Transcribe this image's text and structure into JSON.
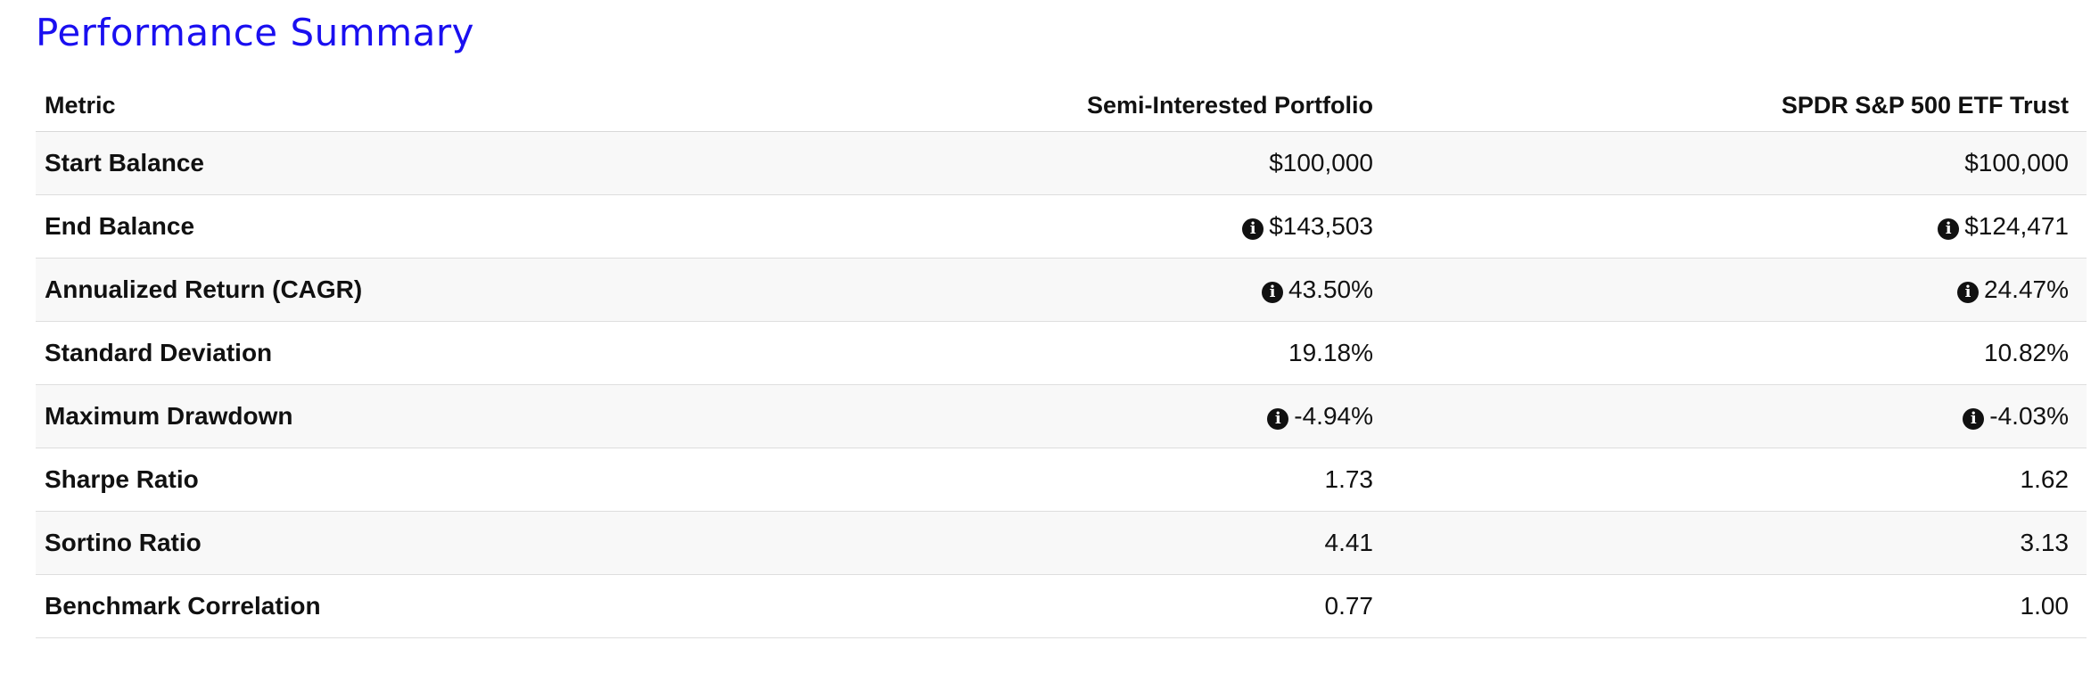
{
  "title": "Performance Summary",
  "colors": {
    "title": "#1a0ff0"
  },
  "table": {
    "headers": [
      "Metric",
      "Semi-Interested Portfolio",
      "SPDR S&P 500 ETF Trust"
    ],
    "rows": [
      {
        "metric": "Start Balance",
        "a": "$100,000",
        "a_info": false,
        "b": "$100,000",
        "b_info": false
      },
      {
        "metric": "End Balance",
        "a": "$143,503",
        "a_info": true,
        "b": "$124,471",
        "b_info": true
      },
      {
        "metric": "Annualized Return (CAGR)",
        "a": "43.50%",
        "a_info": true,
        "b": "24.47%",
        "b_info": true
      },
      {
        "metric": "Standard Deviation",
        "a": "19.18%",
        "a_info": false,
        "b": "10.82%",
        "b_info": false
      },
      {
        "metric": "Maximum Drawdown",
        "a": "-4.94%",
        "a_info": true,
        "b": "-4.03%",
        "b_info": true
      },
      {
        "metric": "Sharpe Ratio",
        "a": "1.73",
        "a_info": false,
        "b": "1.62",
        "b_info": false
      },
      {
        "metric": "Sortino Ratio",
        "a": "4.41",
        "a_info": false,
        "b": "3.13",
        "b_info": false
      },
      {
        "metric": "Benchmark Correlation",
        "a": "0.77",
        "a_info": false,
        "b": "1.00",
        "b_info": false
      }
    ]
  },
  "icons": {
    "info": "info-icon",
    "info_glyph": "i"
  }
}
